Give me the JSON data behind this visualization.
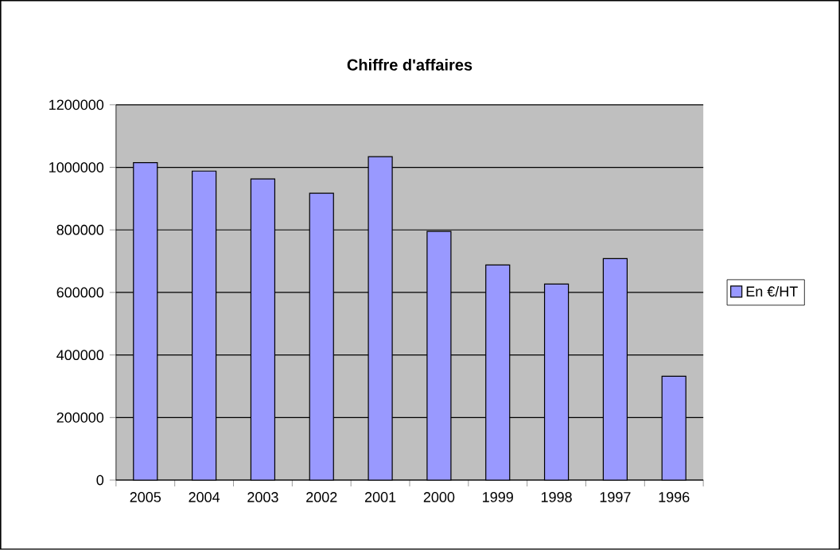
{
  "chart_data": {
    "type": "bar",
    "title": "Chiffre d'affaires",
    "categories": [
      "2005",
      "2004",
      "2003",
      "2002",
      "2001",
      "2000",
      "1999",
      "1998",
      "1997",
      "1996"
    ],
    "series": [
      {
        "name": "En €/HT",
        "color": "#9999ff",
        "values": [
          1015000,
          988000,
          963000,
          917000,
          1034000,
          795000,
          688000,
          627000,
          708000,
          332000
        ]
      }
    ],
    "ylim": [
      0,
      1200000
    ],
    "yticks": [
      0,
      200000,
      400000,
      600000,
      800000,
      1000000,
      1200000
    ],
    "grid": "y",
    "legend": "right"
  }
}
